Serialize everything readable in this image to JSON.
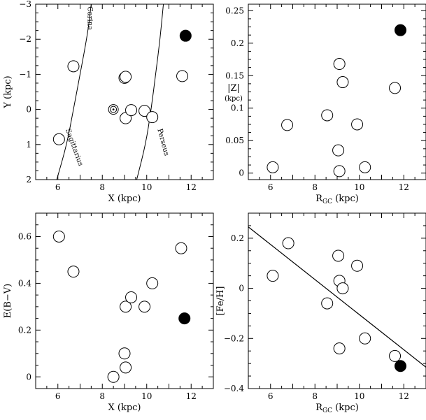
{
  "chart_data": [
    {
      "type": "scatter",
      "xlabel": "X (kpc)",
      "ylabel": "Y (kpc)",
      "xlim": [
        5,
        13
      ],
      "ylim": [
        2,
        -3
      ],
      "y_inverted": true,
      "xticks": [
        6,
        8,
        10,
        12
      ],
      "yticks": [
        -3,
        -2,
        -1,
        0,
        1,
        2
      ],
      "points_open": [
        {
          "x": 6.7,
          "y": -1.23
        },
        {
          "x": 6.05,
          "y": 0.85
        },
        {
          "x": 9.0,
          "y": -0.9
        },
        {
          "x": 9.05,
          "y": -0.93
        },
        {
          "x": 9.05,
          "y": 0.25
        },
        {
          "x": 9.3,
          "y": 0.02
        },
        {
          "x": 9.9,
          "y": 0.04
        },
        {
          "x": 10.25,
          "y": 0.22
        },
        {
          "x": 11.6,
          "y": -0.95
        }
      ],
      "points_filled": [
        {
          "x": 11.75,
          "y": -2.1
        }
      ],
      "points_sun": [
        {
          "x": 8.5,
          "y": 0.0
        }
      ],
      "curves": [
        {
          "name": "Carina",
          "points": [
            [
              7.5,
              -3
            ],
            [
              7.35,
              -2.2
            ],
            [
              7.0,
              -1.0
            ],
            [
              6.7,
              0.0
            ],
            [
              6.4,
              1.0
            ],
            [
              5.95,
              2.0
            ]
          ]
        },
        {
          "name": "Perseus",
          "points": [
            [
              10.75,
              -3
            ],
            [
              10.6,
              -2.0
            ],
            [
              10.4,
              -1.0
            ],
            [
              10.2,
              0.0
            ],
            [
              9.95,
              1.0
            ],
            [
              9.55,
              2.0
            ]
          ]
        }
      ],
      "annotations": [
        "Carina",
        "Sagittarius",
        "Perseus"
      ]
    },
    {
      "type": "scatter",
      "xlabel": "R_GC (kpc)",
      "ylabel": "|Z| (kpc)",
      "xlim": [
        5,
        13
      ],
      "ylim": [
        -0.01,
        0.26
      ],
      "xticks": [
        6,
        8,
        10,
        12
      ],
      "yticks": [
        0,
        0.05,
        0.1,
        0.15,
        0.2,
        0.25
      ],
      "points_open": [
        {
          "x": 6.1,
          "y": 0.009
        },
        {
          "x": 6.75,
          "y": 0.074
        },
        {
          "x": 8.55,
          "y": 0.089
        },
        {
          "x": 9.05,
          "y": 0.035
        },
        {
          "x": 9.1,
          "y": 0.003
        },
        {
          "x": 9.1,
          "y": 0.168
        },
        {
          "x": 9.25,
          "y": 0.14
        },
        {
          "x": 9.9,
          "y": 0.075
        },
        {
          "x": 10.25,
          "y": 0.009
        },
        {
          "x": 11.6,
          "y": 0.131
        }
      ],
      "points_filled": [
        {
          "x": 11.85,
          "y": 0.22
        }
      ]
    },
    {
      "type": "scatter",
      "xlabel": "X (kpc)",
      "ylabel": "E(B−V)",
      "xlim": [
        5,
        13
      ],
      "ylim": [
        -0.05,
        0.7
      ],
      "xticks": [
        6,
        8,
        10,
        12
      ],
      "yticks": [
        0,
        0.2,
        0.4,
        0.6
      ],
      "points_open": [
        {
          "x": 6.05,
          "y": 0.6
        },
        {
          "x": 6.7,
          "y": 0.45
        },
        {
          "x": 8.5,
          "y": 0.0
        },
        {
          "x": 9.0,
          "y": 0.1
        },
        {
          "x": 9.05,
          "y": 0.04
        },
        {
          "x": 9.05,
          "y": 0.3
        },
        {
          "x": 9.3,
          "y": 0.34
        },
        {
          "x": 9.9,
          "y": 0.3
        },
        {
          "x": 10.25,
          "y": 0.4
        },
        {
          "x": 11.55,
          "y": 0.55
        }
      ],
      "points_filled": [
        {
          "x": 11.7,
          "y": 0.25
        }
      ]
    },
    {
      "type": "scatter",
      "xlabel": "R_GC (kpc)",
      "ylabel": "[Fe/H]",
      "xlim": [
        5,
        13
      ],
      "ylim": [
        -0.4,
        0.3
      ],
      "xticks": [
        6,
        8,
        10,
        12
      ],
      "yticks": [
        -0.4,
        -0.2,
        0,
        0.2
      ],
      "points_open": [
        {
          "x": 6.1,
          "y": 0.05
        },
        {
          "x": 6.8,
          "y": 0.18
        },
        {
          "x": 8.55,
          "y": -0.06
        },
        {
          "x": 9.05,
          "y": 0.13
        },
        {
          "x": 9.1,
          "y": 0.03
        },
        {
          "x": 9.1,
          "y": -0.24
        },
        {
          "x": 9.25,
          "y": 0.0
        },
        {
          "x": 9.9,
          "y": 0.09
        },
        {
          "x": 10.25,
          "y": -0.2
        },
        {
          "x": 11.6,
          "y": -0.27
        }
      ],
      "points_filled": [
        {
          "x": 11.85,
          "y": -0.31
        }
      ],
      "fit_line": {
        "x": [
          5,
          13
        ],
        "y": [
          0.245,
          -0.315
        ]
      }
    }
  ]
}
